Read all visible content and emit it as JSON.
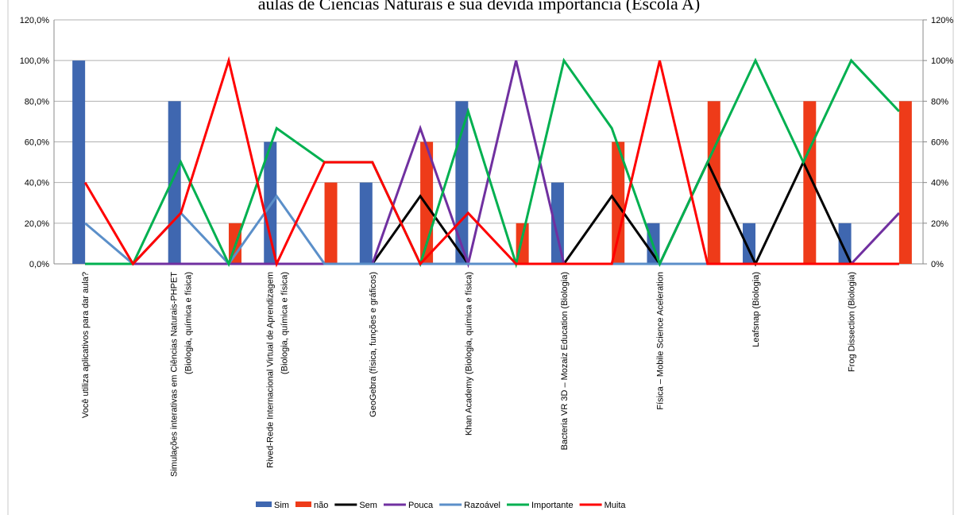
{
  "chart_data": {
    "type": "bar-line",
    "title": "aulas de Ciências Naturais e sua devida importância (Escola A)",
    "categories": [
      "Você utiliza aplicativos para dar aula?",
      null,
      "Simulações interativas em Ciências Naturais-PHPET\n(Biologia, química e física)",
      null,
      "Rived-Rede Internacional Virtual de Aprendizagem\n(Biologia, química e física)",
      null,
      "GeoGebra (física, funções e gráficos)",
      null,
      "Khan Academy (Biologia, química e física)",
      null,
      "Bacteria VR 3D – Mozaiz Education (Biologia)",
      null,
      "Física – Mobile Science Aceleration",
      null,
      "Leafsnap (Biologia)",
      null,
      "Frog Dissection (Biologia)",
      null
    ],
    "series": [
      {
        "name": "Sim",
        "kind": "bar",
        "color": "#3f67b0",
        "values": [
          100,
          null,
          80,
          null,
          60,
          null,
          40,
          null,
          80,
          null,
          40,
          null,
          20,
          null,
          20,
          null,
          20,
          null
        ]
      },
      {
        "name": "não",
        "kind": "bar",
        "color": "#ee3b19",
        "values": [
          null,
          0,
          null,
          20,
          null,
          40,
          null,
          60,
          null,
          20,
          null,
          60,
          null,
          80,
          null,
          80,
          null,
          80
        ]
      },
      {
        "name": "Sem",
        "kind": "line",
        "color": "#000000",
        "values": [
          0,
          0,
          0,
          0,
          0,
          0,
          0,
          33.3,
          0,
          0,
          0,
          33.3,
          0,
          50,
          0,
          50,
          0,
          0
        ]
      },
      {
        "name": "Pouca",
        "kind": "line",
        "color": "#7030a0",
        "values": [
          0,
          0,
          0,
          0,
          0,
          0,
          0,
          66.7,
          0,
          100,
          0,
          0,
          0,
          0,
          0,
          0,
          0,
          25
        ]
      },
      {
        "name": "Razoável",
        "kind": "line",
        "color": "#5b8fc9",
        "values": [
          20,
          0,
          25,
          0,
          33.3,
          0,
          0,
          0,
          0,
          0,
          0,
          0,
          0,
          0,
          0,
          0,
          0,
          0
        ]
      },
      {
        "name": "Importante",
        "kind": "line",
        "color": "#00b050",
        "values": [
          0,
          0,
          50,
          0,
          66.7,
          50,
          50,
          0,
          75,
          0,
          100,
          66.7,
          0,
          50,
          100,
          50,
          100,
          75
        ]
      },
      {
        "name": "Muita",
        "kind": "line",
        "color": "#ff0000",
        "values": [
          40,
          0,
          25,
          100,
          0,
          50,
          50,
          0,
          25,
          0,
          0,
          0,
          100,
          0,
          0,
          0,
          0,
          0
        ]
      }
    ],
    "ylim": [
      0,
      120
    ],
    "yticks": [
      {
        "value": 0,
        "label": "0,0%"
      },
      {
        "value": 20,
        "label": "20,0%"
      },
      {
        "value": 40,
        "label": "40,0%"
      },
      {
        "value": 60,
        "label": "60,0%"
      },
      {
        "value": 80,
        "label": "80,0%"
      },
      {
        "value": 100,
        "label": "100,0%"
      },
      {
        "value": 120,
        "label": "120,0%"
      }
    ],
    "y2lim": [
      0,
      120
    ],
    "y2ticks": [
      {
        "value": 0,
        "label": "0%"
      },
      {
        "value": 20,
        "label": "20%"
      },
      {
        "value": 40,
        "label": "40%"
      },
      {
        "value": 60,
        "label": "60%"
      },
      {
        "value": 80,
        "label": "80%"
      },
      {
        "value": 100,
        "label": "100%"
      },
      {
        "value": 120,
        "label": "120%"
      }
    ],
    "grid": true,
    "legend": "bottom"
  }
}
